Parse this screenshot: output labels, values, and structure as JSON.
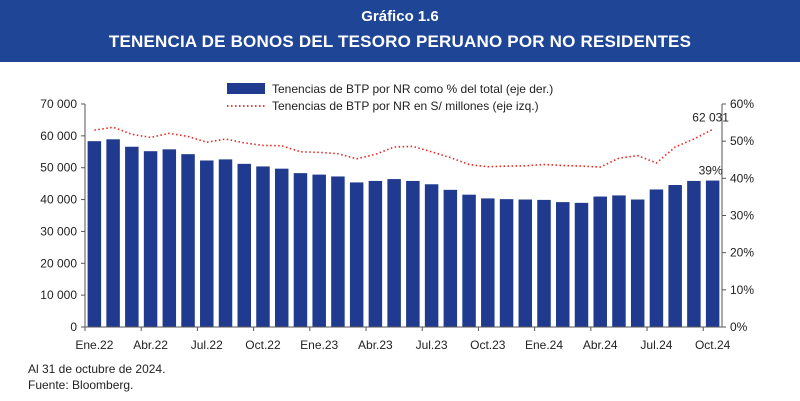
{
  "header": {
    "chart_number": "Gráfico 1.6",
    "title": "TENENCIA DE BONOS DEL TESORO PERUANO POR NO RESIDENTES"
  },
  "footer": {
    "note": "Al 31 de octubre de 2024.",
    "source": "Fuente: Bloomberg."
  },
  "colors": {
    "header_bg": "#1f4597",
    "bar": "#1f3a8f",
    "line": "#e8261e"
  },
  "chart_data": {
    "type": "bar+line",
    "title": "TENENCIA DE BONOS DEL TESORO PERUANO POR NO RESIDENTES",
    "left_axis": {
      "min": 0,
      "max": 70000,
      "step": 10000,
      "tick_labels": [
        "0",
        "10 000",
        "20 000",
        "30 000",
        "40 000",
        "50 000",
        "60 000",
        "70 000"
      ]
    },
    "right_axis": {
      "min": 0,
      "max": 60,
      "step": 10,
      "tick_labels": [
        "0%",
        "10%",
        "20%",
        "30%",
        "40%",
        "50%",
        "60%"
      ]
    },
    "x_tick_labels": [
      "Ene.22",
      "Abr.22",
      "Jul.22",
      "Oct.22",
      "Ene.23",
      "Abr.23",
      "Jul.23",
      "Oct.23",
      "Ene.24",
      "Abr.24",
      "Jul.24",
      "Oct.24"
    ],
    "categories": [
      "Ene.22",
      "Feb.22",
      "Mar.22",
      "Abr.22",
      "May.22",
      "Jun.22",
      "Jul.22",
      "Ago.22",
      "Sep.22",
      "Oct.22",
      "Nov.22",
      "Dic.22",
      "Ene.23",
      "Feb.23",
      "Mar.23",
      "Abr.23",
      "May.23",
      "Jun.23",
      "Jul.23",
      "Ago.23",
      "Sep.23",
      "Oct.23",
      "Nov.23",
      "Dic.23",
      "Ene.24",
      "Feb.24",
      "Mar.24",
      "Abr.24",
      "May.24",
      "Jun.24",
      "Jul.24",
      "Ago.24",
      "Sep.24",
      "Oct.24"
    ],
    "series": [
      {
        "name": "Tenencias de BTP por NR como % del total (eje der.)",
        "type": "bar",
        "axis": "right",
        "values": [
          50,
          50.5,
          48.5,
          47.3,
          47.8,
          46.5,
          44.8,
          45.1,
          43.9,
          43.2,
          42.6,
          41.4,
          41.0,
          40.5,
          38.9,
          39.3,
          39.8,
          39.3,
          38.4,
          36.9,
          35.6,
          34.6,
          34.4,
          34.3,
          34.2,
          33.6,
          33.4,
          35.1,
          35.4,
          34.3,
          37.0,
          38.2,
          39.3,
          39.4
        ]
      },
      {
        "name": "Tenencias de BTP por NR en S/ millones (eje izq.)",
        "type": "line",
        "axis": "left",
        "values": [
          61800,
          62700,
          60500,
          59500,
          60800,
          59800,
          58000,
          59000,
          57800,
          57000,
          56900,
          55000,
          54800,
          54400,
          52800,
          54200,
          56500,
          56700,
          55000,
          53200,
          51000,
          50300,
          50500,
          50600,
          51000,
          50700,
          50500,
          50200,
          53000,
          53800,
          51500,
          56500,
          59000,
          62031
        ]
      }
    ],
    "annotations": [
      {
        "text": "62 031",
        "series": "line",
        "category": "Oct.24"
      },
      {
        "text": "39%",
        "series": "bar",
        "category": "Oct.24"
      }
    ]
  }
}
